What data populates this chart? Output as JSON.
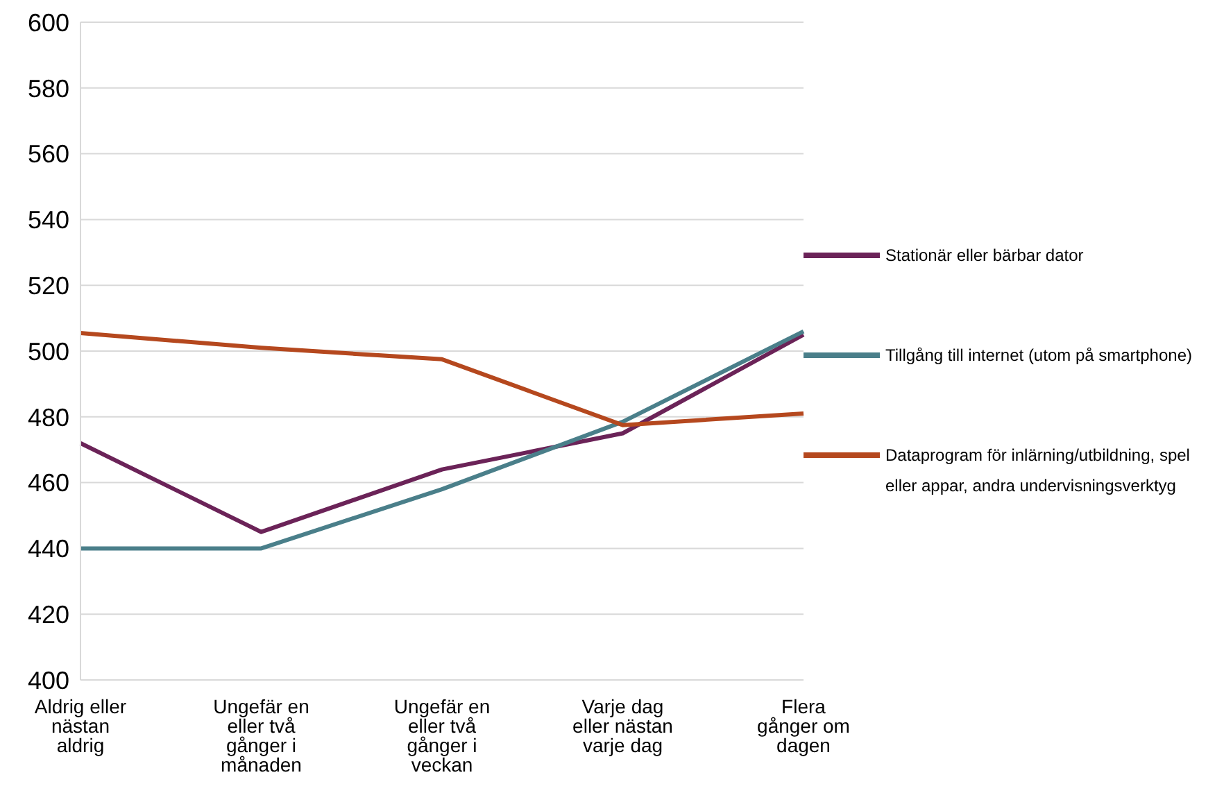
{
  "chart_data": {
    "type": "line",
    "categories": [
      "Aldrig eller nästan aldrig",
      "Ungefär en eller två gånger i månaden",
      "Ungefär en eller två gånger i veckan",
      "Varje dag eller nästan varje dag",
      "Flera gånger om dagen"
    ],
    "series": [
      {
        "name": "Stationär eller bärbar dator",
        "color": "#6b2358",
        "values": [
          472,
          445,
          464,
          475,
          505
        ]
      },
      {
        "name": "Tillgång till internet (utom på smartphone)",
        "color": "#4a7f8a",
        "values": [
          440,
          440,
          458,
          478.5,
          506
        ]
      },
      {
        "name": "Dataprogram för inlärning/utbildning, spel eller appar, andra undervisningsverktyg",
        "color": "#b5481e",
        "values": [
          505.5,
          501,
          497.5,
          477.5,
          481
        ]
      }
    ],
    "ylim": [
      400,
      600
    ],
    "yticks": [
      400,
      420,
      440,
      460,
      480,
      500,
      520,
      540,
      560,
      580,
      600
    ],
    "grid": "y",
    "legend": "right",
    "marker": "none"
  }
}
